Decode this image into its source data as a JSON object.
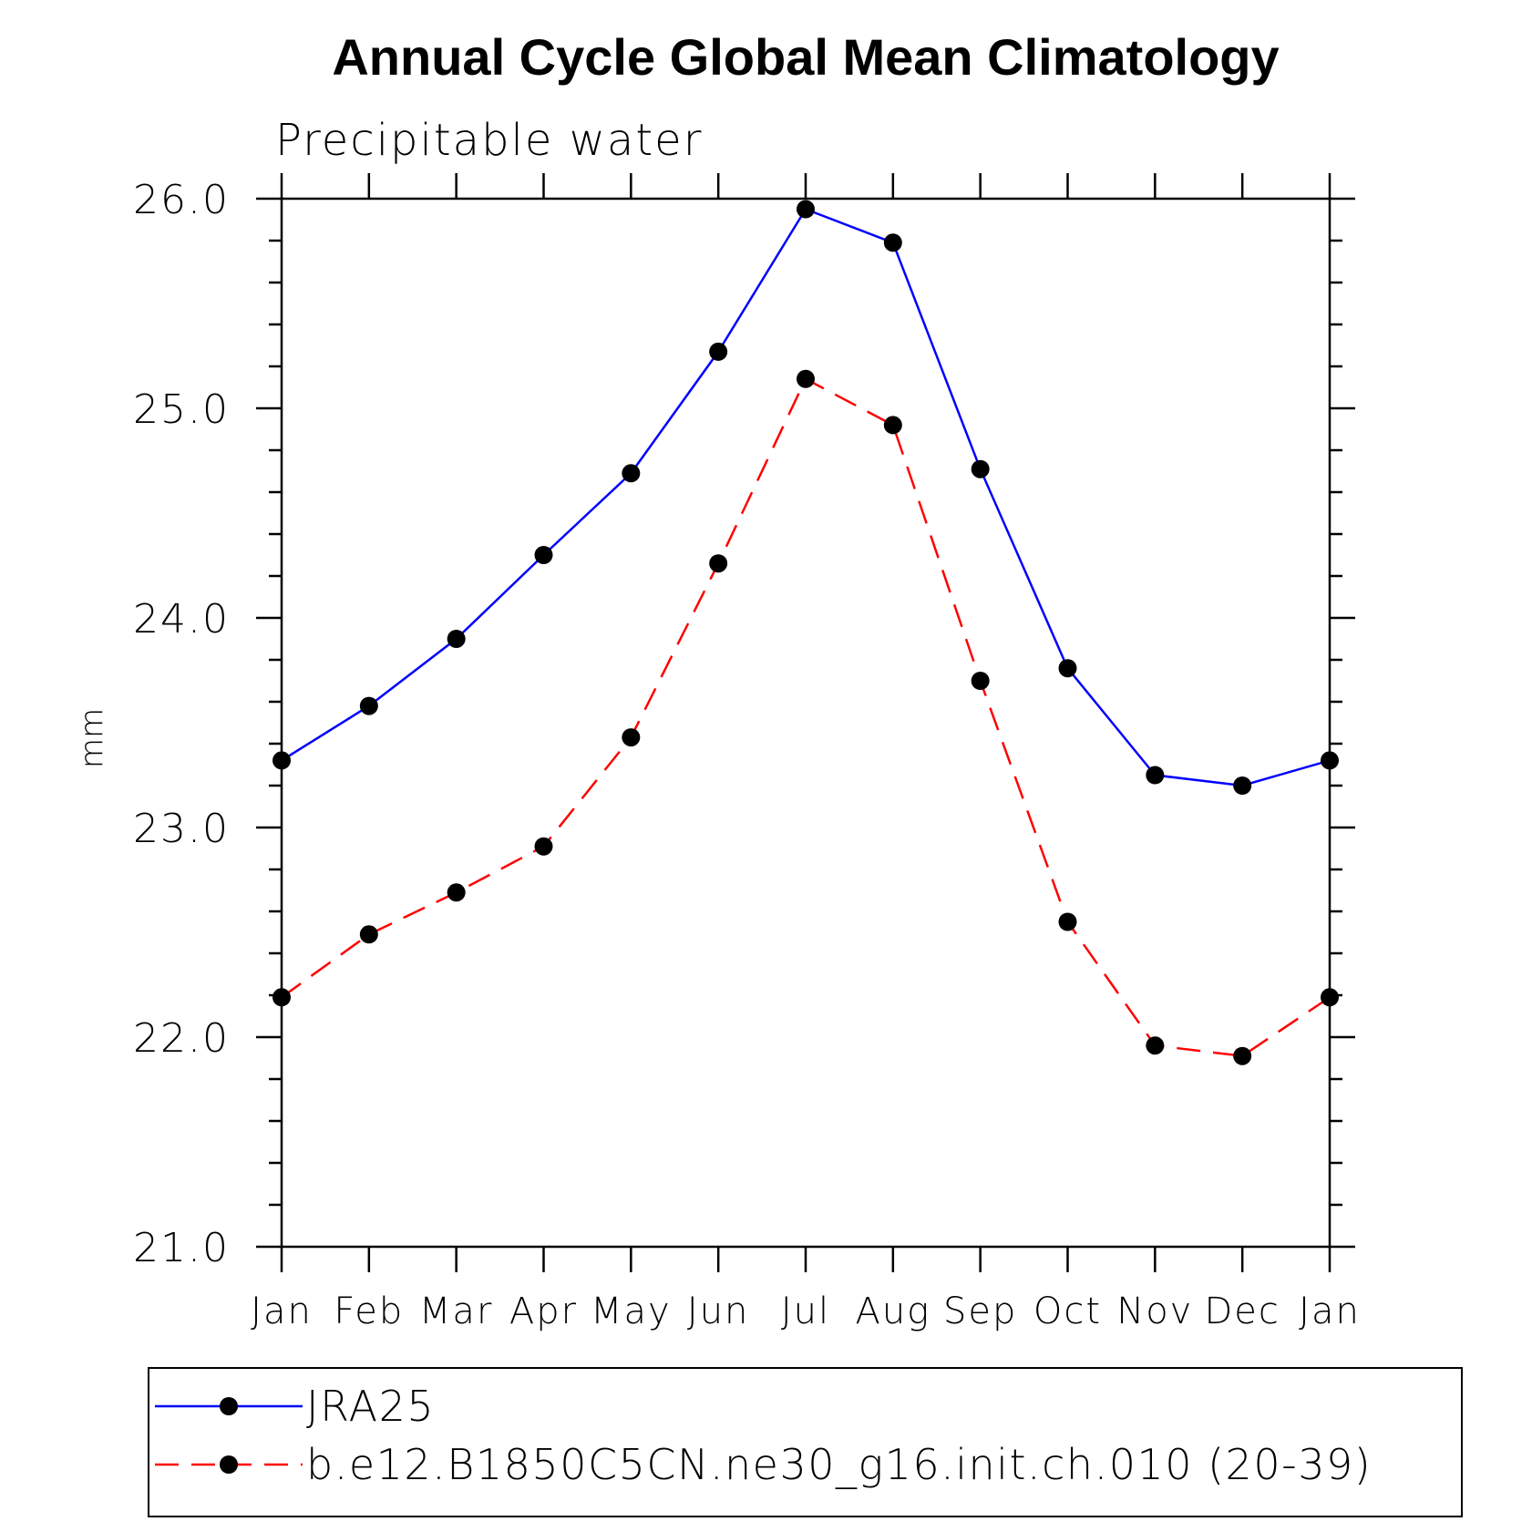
{
  "chart_data": {
    "type": "line",
    "title": "Annual Cycle Global Mean Climatology",
    "subtitle": "Precipitable water",
    "xlabel": "",
    "ylabel": "mm",
    "ylim": [
      21.0,
      26.0
    ],
    "yticks": [
      "21.0",
      "22.0",
      "23.0",
      "24.0",
      "25.0",
      "26.0"
    ],
    "yminor_step": 0.2,
    "categories": [
      "Jan",
      "Feb",
      "Mar",
      "Apr",
      "May",
      "Jun",
      "Jul",
      "Aug",
      "Sep",
      "Oct",
      "Nov",
      "Dec",
      "Jan"
    ],
    "grid": false,
    "legend_position": "bottom",
    "series": [
      {
        "name": "JRA25",
        "color": "#0000ff",
        "dash": "solid",
        "marker": "filled-circle",
        "values": [
          23.32,
          23.58,
          23.9,
          24.3,
          24.69,
          25.27,
          25.95,
          25.79,
          24.71,
          23.76,
          23.25,
          23.2,
          23.32
        ]
      },
      {
        "name": "b.e12.B1850C5CN.ne30_g16.init.ch.010 (20-39)",
        "color": "#ff0000",
        "dash": "dashed",
        "marker": "filled-circle",
        "values": [
          22.19,
          22.49,
          22.69,
          22.91,
          23.43,
          24.26,
          25.14,
          24.92,
          23.7,
          22.55,
          21.96,
          21.91,
          22.19
        ]
      }
    ]
  }
}
